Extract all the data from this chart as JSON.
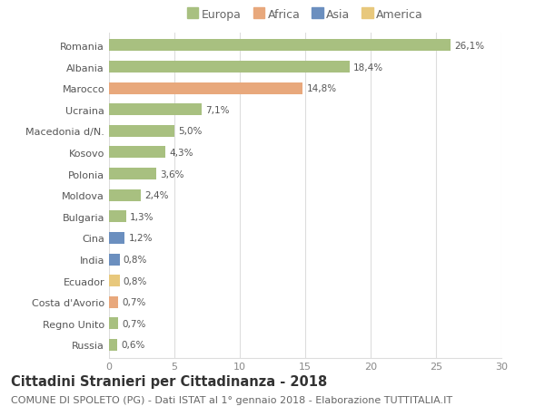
{
  "countries": [
    "Romania",
    "Albania",
    "Marocco",
    "Ucraina",
    "Macedonia d/N.",
    "Kosovo",
    "Polonia",
    "Moldova",
    "Bulgaria",
    "Cina",
    "India",
    "Ecuador",
    "Costa d'Avorio",
    "Regno Unito",
    "Russia"
  ],
  "values": [
    26.1,
    18.4,
    14.8,
    7.1,
    5.0,
    4.3,
    3.6,
    2.4,
    1.3,
    1.2,
    0.8,
    0.8,
    0.7,
    0.7,
    0.6
  ],
  "labels": [
    "26,1%",
    "18,4%",
    "14,8%",
    "7,1%",
    "5,0%",
    "4,3%",
    "3,6%",
    "2,4%",
    "1,3%",
    "1,2%",
    "0,8%",
    "0,8%",
    "0,7%",
    "0,7%",
    "0,6%"
  ],
  "continents": [
    "Europa",
    "Europa",
    "Africa",
    "Europa",
    "Europa",
    "Europa",
    "Europa",
    "Europa",
    "Europa",
    "Asia",
    "Asia",
    "America",
    "Africa",
    "Europa",
    "Europa"
  ],
  "colors": {
    "Europa": "#a8c080",
    "Africa": "#e8a87c",
    "Asia": "#6b8fbf",
    "America": "#e8c87c"
  },
  "xlim": [
    0,
    30
  ],
  "xticks": [
    0,
    5,
    10,
    15,
    20,
    25,
    30
  ],
  "title": "Cittadini Stranieri per Cittadinanza - 2018",
  "subtitle": "COMUNE DI SPOLETO (PG) - Dati ISTAT al 1° gennaio 2018 - Elaborazione TUTTITALIA.IT",
  "background_color": "#ffffff",
  "grid_color": "#dddddd",
  "bar_height": 0.55,
  "title_fontsize": 10.5,
  "subtitle_fontsize": 8,
  "label_fontsize": 7.5,
  "tick_fontsize": 8,
  "legend_fontsize": 9,
  "legend_labels": [
    "Europa",
    "Africa",
    "Asia",
    "America"
  ]
}
